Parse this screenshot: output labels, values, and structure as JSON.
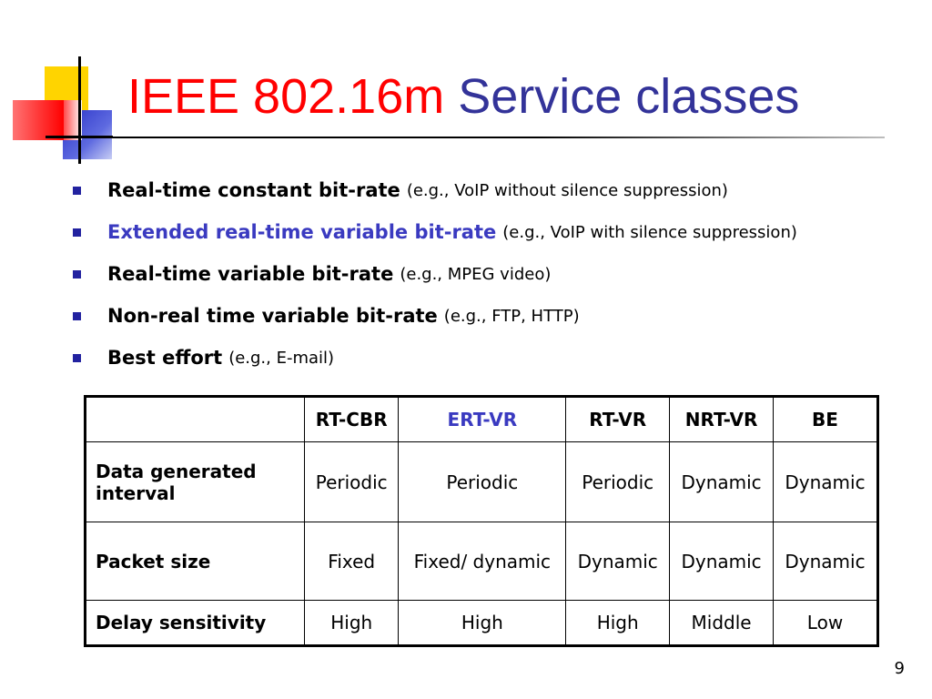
{
  "colors": {
    "title_red": "#ff0000",
    "title_blue": "#333399",
    "accent_blue": "#3a3ac0"
  },
  "title": {
    "part1": "IEEE 802.16m",
    "part2": "Service classes"
  },
  "bullets": [
    {
      "name": "Real-time constant bit-rate",
      "example": "(e.g., VoIP without silence suppression)",
      "highlight": false
    },
    {
      "name": "Extended real-time variable bit-rate",
      "example": "(e.g., VoIP with silence suppression)",
      "highlight": true
    },
    {
      "name": "Real-time variable bit-rate",
      "example": "(e.g., MPEG video)",
      "highlight": false
    },
    {
      "name": "Non-real time variable bit-rate",
      "example": "(e.g., FTP, HTTP)",
      "highlight": false
    },
    {
      "name": "Best effort",
      "example": "(e.g., E-mail)",
      "highlight": false
    }
  ],
  "table": {
    "columns": [
      "RT-CBR",
      "ERT-VR",
      "RT-VR",
      "NRT-VR",
      "BE"
    ],
    "rows": [
      {
        "label": "Data generated interval",
        "cells": [
          "Periodic",
          "Periodic",
          "Periodic",
          "Dynamic",
          "Dynamic"
        ]
      },
      {
        "label": "Packet size",
        "cells": [
          "Fixed",
          "Fixed/ dynamic",
          "Dynamic",
          "Dynamic",
          "Dynamic"
        ]
      },
      {
        "label": "Delay sensitivity",
        "cells": [
          "High",
          "High",
          "High",
          "Middle",
          "Low"
        ]
      }
    ]
  },
  "page_number": "9"
}
